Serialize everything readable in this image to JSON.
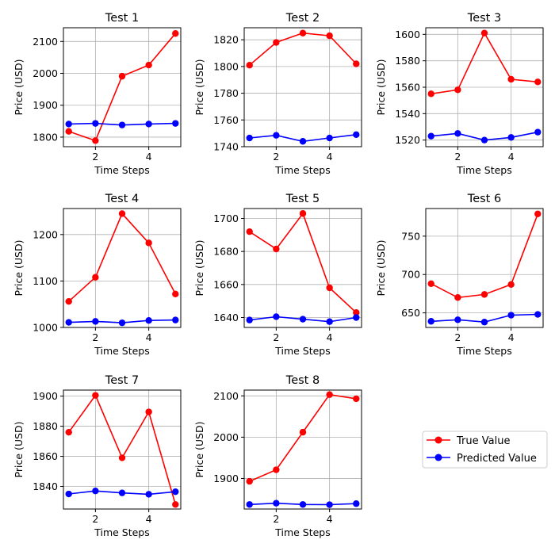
{
  "legend": {
    "placement": "lower-right",
    "entries": [
      {
        "label": "True Value",
        "color": "#ff0000"
      },
      {
        "label": "Predicted Value",
        "color": "#0000ff"
      }
    ]
  },
  "chart_data": [
    {
      "type": "line",
      "title": "Test 1",
      "xlabel": "Time Steps",
      "ylabel": "Price (USD)",
      "x": [
        1,
        2,
        3,
        4,
        5
      ],
      "xticks": [
        2,
        4
      ],
      "yticks": [
        1800,
        1900,
        2000,
        2100
      ],
      "ylim": [
        1770,
        2143
      ],
      "grid": true,
      "series": [
        {
          "name": "True Value",
          "color": "#ff0000",
          "values": [
            1818,
            1789,
            1991,
            2026,
            2125
          ]
        },
        {
          "name": "Predicted Value",
          "color": "#0000ff",
          "values": [
            1841,
            1843,
            1838,
            1841,
            1843
          ]
        }
      ]
    },
    {
      "type": "line",
      "title": "Test 2",
      "xlabel": "Time Steps",
      "ylabel": "Price (USD)",
      "x": [
        1,
        2,
        3,
        4,
        5
      ],
      "xticks": [
        2,
        4
      ],
      "yticks": [
        1740,
        1760,
        1780,
        1800,
        1820
      ],
      "ylim": [
        1740,
        1829
      ],
      "grid": true,
      "series": [
        {
          "name": "True Value",
          "color": "#ff0000",
          "values": [
            1801,
            1818,
            1825,
            1823,
            1802
          ]
        },
        {
          "name": "Predicted Value",
          "color": "#0000ff",
          "values": [
            1746.5,
            1748.5,
            1744,
            1746.5,
            1749
          ]
        }
      ]
    },
    {
      "type": "line",
      "title": "Test 3",
      "xlabel": "Time Steps",
      "ylabel": "Price (USD)",
      "x": [
        1,
        2,
        3,
        4,
        5
      ],
      "xticks": [
        2,
        4
      ],
      "yticks": [
        1520,
        1540,
        1560,
        1580,
        1600
      ],
      "ylim": [
        1515,
        1605
      ],
      "grid": true,
      "series": [
        {
          "name": "True Value",
          "color": "#ff0000",
          "values": [
            1555,
            1558,
            1601,
            1566,
            1564
          ]
        },
        {
          "name": "Predicted Value",
          "color": "#0000ff",
          "values": [
            1523,
            1525,
            1520,
            1522,
            1526
          ]
        }
      ]
    },
    {
      "type": "line",
      "title": "Test 4",
      "xlabel": "Time Steps",
      "ylabel": "Price (USD)",
      "x": [
        1,
        2,
        3,
        4,
        5
      ],
      "xticks": [
        2,
        4
      ],
      "yticks": [
        1000,
        1100,
        1200
      ],
      "ylim": [
        1000,
        1256
      ],
      "grid": true,
      "series": [
        {
          "name": "True Value",
          "color": "#ff0000",
          "values": [
            1056,
            1108,
            1245,
            1182,
            1072
          ]
        },
        {
          "name": "Predicted Value",
          "color": "#0000ff",
          "values": [
            1011,
            1013,
            1010,
            1015,
            1016
          ]
        }
      ]
    },
    {
      "type": "line",
      "title": "Test 5",
      "xlabel": "Time Steps",
      "ylabel": "Price (USD)",
      "x": [
        1,
        2,
        3,
        4,
        5
      ],
      "xticks": [
        2,
        4
      ],
      "yticks": [
        1640,
        1660,
        1680,
        1700
      ],
      "ylim": [
        1634,
        1706
      ],
      "grid": true,
      "series": [
        {
          "name": "True Value",
          "color": "#ff0000",
          "values": [
            1692,
            1681.5,
            1703,
            1658,
            1643
          ]
        },
        {
          "name": "Predicted Value",
          "color": "#0000ff",
          "values": [
            1638.5,
            1640.5,
            1639,
            1637.5,
            1640
          ]
        }
      ]
    },
    {
      "type": "line",
      "title": "Test 6",
      "xlabel": "Time Steps",
      "ylabel": "Price (USD)",
      "x": [
        1,
        2,
        3,
        4,
        5
      ],
      "xticks": [
        2,
        4
      ],
      "yticks": [
        650,
        700,
        750
      ],
      "ylim": [
        631,
        786
      ],
      "grid": true,
      "series": [
        {
          "name": "True Value",
          "color": "#ff0000",
          "values": [
            688,
            670,
            674,
            687,
            779
          ]
        },
        {
          "name": "Predicted Value",
          "color": "#0000ff",
          "values": [
            639,
            641,
            638,
            647,
            648
          ]
        }
      ]
    },
    {
      "type": "line",
      "title": "Test 7",
      "xlabel": "Time Steps",
      "ylabel": "Price (USD)",
      "x": [
        1,
        2,
        3,
        4,
        5
      ],
      "xticks": [
        2,
        4
      ],
      "yticks": [
        1840,
        1860,
        1880,
        1900
      ],
      "ylim": [
        1825,
        1904
      ],
      "grid": true,
      "series": [
        {
          "name": "True Value",
          "color": "#ff0000",
          "values": [
            1876,
            1900.5,
            1859,
            1889.5,
            1828
          ]
        },
        {
          "name": "Predicted Value",
          "color": "#0000ff",
          "values": [
            1835,
            1837,
            1835.7,
            1834.8,
            1836.5
          ]
        }
      ]
    },
    {
      "type": "line",
      "title": "Test 8",
      "xlabel": "Time Steps",
      "ylabel": "Price (USD)",
      "x": [
        1,
        2,
        3,
        4,
        5
      ],
      "xticks": [
        2,
        4
      ],
      "yticks": [
        1900,
        2000,
        2100
      ],
      "ylim": [
        1826,
        2114
      ],
      "grid": true,
      "series": [
        {
          "name": "True Value",
          "color": "#ff0000",
          "values": [
            1893,
            1921,
            2012,
            2103,
            2093
          ]
        },
        {
          "name": "Predicted Value",
          "color": "#0000ff",
          "values": [
            1837,
            1840,
            1837,
            1836.5,
            1839
          ]
        }
      ]
    }
  ]
}
